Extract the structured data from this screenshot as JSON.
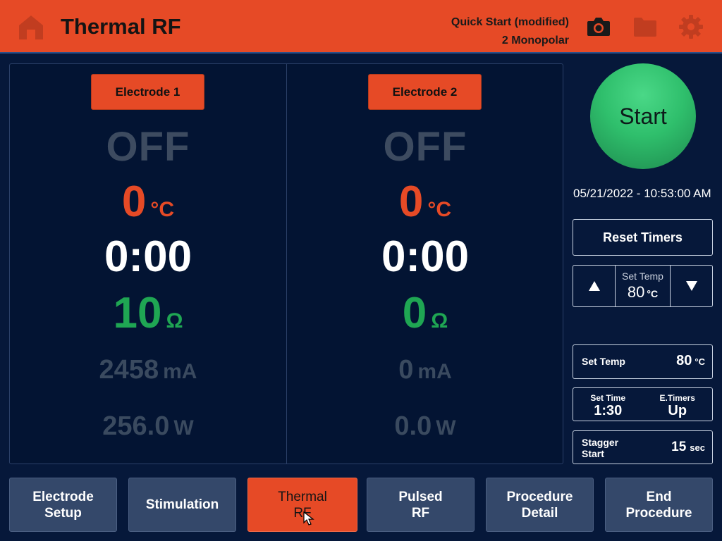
{
  "header": {
    "title": "Thermal RF",
    "protocol_name": "Quick Start (modified)",
    "mode": "2 Monopolar",
    "icons": [
      "home-icon",
      "camera-icon",
      "folder-icon",
      "gear-icon"
    ],
    "accent_color": "#e64a26"
  },
  "electrodes": [
    {
      "label": "Electrode 1",
      "status": "OFF",
      "temperature": "0",
      "temperature_unit": "°C",
      "timer": "0:00",
      "impedance": "10",
      "impedance_unit": "Ω",
      "current": "2458",
      "current_unit": "mA",
      "power": "256.0",
      "power_unit": "W"
    },
    {
      "label": "Electrode 2",
      "status": "OFF",
      "temperature": "0",
      "temperature_unit": "°C",
      "timer": "0:00",
      "impedance": "0",
      "impedance_unit": "Ω",
      "current": "0",
      "current_unit": "mA",
      "power": "0.0",
      "power_unit": "W"
    }
  ],
  "controls": {
    "start_label": "Start",
    "datetime": "05/21/2022 - 10:53:00 AM",
    "reset_timers_label": "Reset Timers",
    "stepper": {
      "label": "Set Temp",
      "value": "80",
      "unit": "°C"
    },
    "set_temp": {
      "label": "Set Temp",
      "value": "80",
      "unit": "°C"
    },
    "set_time": {
      "label": "Set Time",
      "value": "1:30"
    },
    "e_timers": {
      "label": "E.Timers",
      "value": "Up"
    },
    "stagger": {
      "label": "Stagger\nStart",
      "value": "15",
      "unit": "sec"
    }
  },
  "nav": [
    {
      "label": "Electrode\nSetup",
      "active": false
    },
    {
      "label": "Stimulation",
      "active": false
    },
    {
      "label": "Thermal\nRF",
      "active": true
    },
    {
      "label": "Pulsed\nRF",
      "active": false
    },
    {
      "label": "Procedure\nDetail",
      "active": false
    },
    {
      "label": "End\nProcedure",
      "active": false
    }
  ]
}
